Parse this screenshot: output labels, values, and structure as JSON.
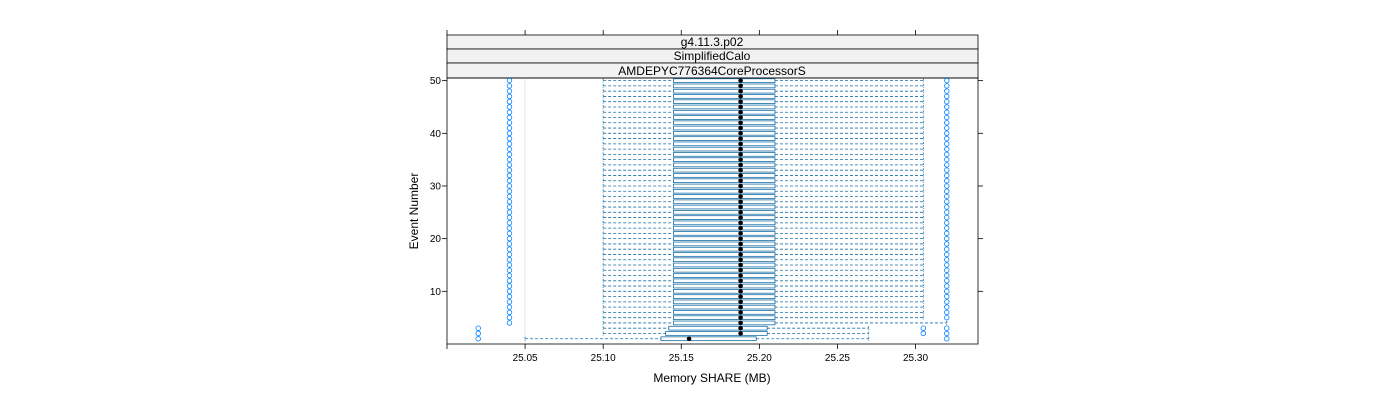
{
  "chart_data": {
    "type": "boxplot",
    "title": "",
    "strips": [
      "g4.11.3.p02",
      "SimplifiedCalo",
      "AMDEPYC776364CoreProcessorS"
    ],
    "xlabel": "Memory SHARE (MB)",
    "ylabel": "Event Number",
    "xlim": [
      25.0,
      25.34
    ],
    "ylim": [
      0,
      50.5
    ],
    "x_ticks": [
      25.05,
      25.1,
      25.15,
      25.2,
      25.25,
      25.3
    ],
    "x_tick_labels": [
      "25.05",
      "25.10",
      "25.15",
      "25.20",
      "25.25",
      "25.30"
    ],
    "y_ticks": [
      10,
      20,
      30,
      40,
      50
    ],
    "y_tick_labels": [
      "10",
      "20",
      "30",
      "40",
      "50"
    ],
    "reference_line_x": 25.05,
    "typical_box": {
      "whisker_low": 25.1,
      "q1": 25.145,
      "median": 25.188,
      "q3": 25.21,
      "whisker_high": 25.305
    },
    "typical_outliers": [
      25.04,
      25.32
    ],
    "special_events": [
      {
        "event": 1,
        "whisker_low": 25.05,
        "q1": 25.137,
        "median": 25.155,
        "q3": 25.198,
        "whisker_high": 25.27,
        "outliers": [
          25.02,
          25.32
        ]
      },
      {
        "event": 2,
        "whisker_low": 25.1,
        "q1": 25.14,
        "median": 25.188,
        "q3": 25.205,
        "whisker_high": 25.27,
        "outliers": [
          25.02,
          25.305,
          25.32
        ]
      },
      {
        "event": 3,
        "whisker_low": 25.1,
        "q1": 25.142,
        "median": 25.188,
        "q3": 25.205,
        "whisker_high": 25.27,
        "outliers": [
          25.02,
          25.305,
          25.32
        ]
      },
      {
        "event": 4,
        "whisker_low": 25.1,
        "q1": 25.145,
        "median": 25.188,
        "q3": 25.21,
        "whisker_high": 25.32,
        "outliers": [
          25.04
        ]
      }
    ],
    "colors": {
      "box": "#0080ff",
      "box_stroke": "#1a6fa8",
      "median": "#000000",
      "refline": "#e6e6e6",
      "strip_bg": "#f2f2f2"
    }
  }
}
